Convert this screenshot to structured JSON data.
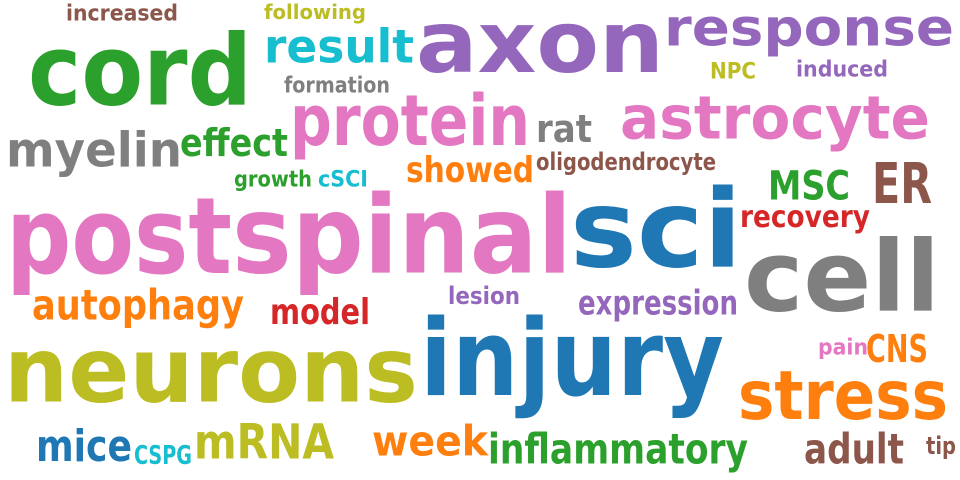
{
  "words": [
    {
      "text": "increased",
      "color": "#8c564b"
    },
    {
      "text": "following",
      "color": "#bcbd22"
    },
    {
      "text": "axon",
      "color": "#9467bd"
    },
    {
      "text": "response",
      "color": "#9467bd"
    },
    {
      "text": "cord",
      "color": "#2ca02c"
    },
    {
      "text": "result",
      "color": "#17becf"
    },
    {
      "text": "formation",
      "color": "#7f7f7f"
    },
    {
      "text": "NPC",
      "color": "#bcbd22"
    },
    {
      "text": "induced",
      "color": "#9467bd"
    },
    {
      "text": "protein",
      "color": "#e377c2"
    },
    {
      "text": "astrocyte",
      "color": "#e377c2"
    },
    {
      "text": "rat",
      "color": "#7f7f7f"
    },
    {
      "text": "myelin",
      "color": "#7f7f7f"
    },
    {
      "text": "effect",
      "color": "#2ca02c"
    },
    {
      "text": "showed",
      "color": "#ff7f0e"
    },
    {
      "text": "oligodendrocyte",
      "color": "#8c564b"
    },
    {
      "text": "ER",
      "color": "#8c564b"
    },
    {
      "text": "growth",
      "color": "#2ca02c"
    },
    {
      "text": "cSCI",
      "color": "#17becf"
    },
    {
      "text": "MSC",
      "color": "#2ca02c"
    },
    {
      "text": "recovery",
      "color": "#d62728"
    },
    {
      "text": "post",
      "color": "#e377c2"
    },
    {
      "text": "spinal",
      "color": "#e377c2"
    },
    {
      "text": "sci",
      "color": "#1f77b4"
    },
    {
      "text": "cell",
      "color": "#7f7f7f"
    },
    {
      "text": "autophagy",
      "color": "#ff7f0e"
    },
    {
      "text": "lesion",
      "color": "#9467bd"
    },
    {
      "text": "expression",
      "color": "#9467bd"
    },
    {
      "text": "model",
      "color": "#d62728"
    },
    {
      "text": "neurons",
      "color": "#bcbd22"
    },
    {
      "text": "injury",
      "color": "#1f77b4"
    },
    {
      "text": "pain",
      "color": "#e377c2"
    },
    {
      "text": "CNS",
      "color": "#ff7f0e"
    },
    {
      "text": "stress",
      "color": "#ff7f0e"
    },
    {
      "text": "mice",
      "color": "#1f77b4"
    },
    {
      "text": "CSPG",
      "color": "#17becf"
    },
    {
      "text": "mRNA",
      "color": "#bcbd22"
    },
    {
      "text": "week",
      "color": "#ff7f0e"
    },
    {
      "text": "inflammatory",
      "color": "#2ca02c"
    },
    {
      "text": "adult",
      "color": "#8c564b"
    },
    {
      "text": "tip",
      "color": "#8c564b"
    }
  ]
}
